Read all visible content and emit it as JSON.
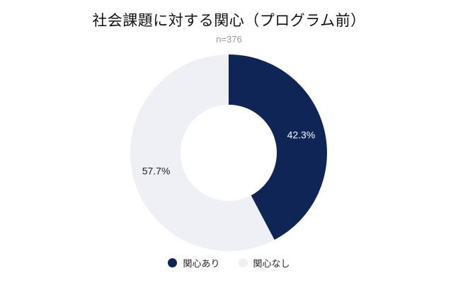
{
  "chart_data": {
    "type": "pie",
    "title": "社会課題に対する関心（プログラム前）",
    "subtitle": "n=376",
    "slices": [
      {
        "name": "関心あり",
        "value": 42.3,
        "label": "42.3%",
        "color": "#0e2556",
        "label_color": "#ffffff"
      },
      {
        "name": "関心なし",
        "value": 57.7,
        "label": "57.7%",
        "color": "#eff0f5",
        "label_color": "#222222"
      }
    ],
    "legend_position": "bottom"
  }
}
